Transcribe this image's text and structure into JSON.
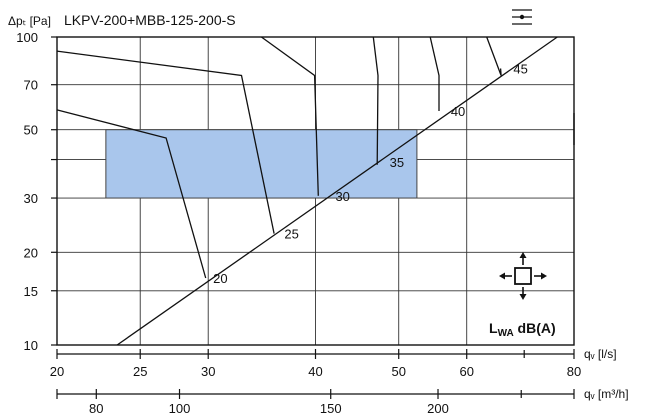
{
  "chart_data": {
    "type": "line",
    "title": "LKPV-200+MBB-125-200-S",
    "ylabel": "Δpₜ [Pa]",
    "xlabel": "qᵥ [l/s]",
    "x2label": "qᵥ [m³/h]",
    "x_scale": "log",
    "y_scale": "log",
    "xlim": [
      20,
      80
    ],
    "ylim": [
      10,
      100
    ],
    "x_ticks": [
      20,
      25,
      30,
      40,
      50,
      60,
      80
    ],
    "x_tick_labels": [
      "20",
      "25",
      "30",
      "40",
      "50",
      "60",
      "80"
    ],
    "x2_ticks": [
      80,
      100,
      150,
      200
    ],
    "x2_tick_labels": [
      "80",
      "100",
      "150",
      "200"
    ],
    "y_ticks": [
      10,
      15,
      20,
      30,
      50,
      70,
      100
    ],
    "y_tick_labels": [
      "10",
      "15",
      "20",
      "30",
      "50",
      "70",
      "100"
    ],
    "grid": true,
    "annotation": {
      "text_main": "L",
      "text_sub": "WA",
      "text_rest": " dB(A)"
    },
    "working_range": {
      "x": [
        22.8,
        52.5
      ],
      "y": [
        30,
        50
      ]
    },
    "system_curve": {
      "x": [
        23.5,
        76.5
      ],
      "y": [
        10,
        100
      ]
    },
    "series": [
      {
        "name": "20",
        "x": [
          20,
          26.8,
          29.8
        ],
        "y": [
          58,
          47,
          16.5
        ]
      },
      {
        "name": "25",
        "x": [
          20,
          32.8,
          35.8
        ],
        "y": [
          90,
          75,
          23
        ]
      },
      {
        "name": "30",
        "x": [
          34.6,
          39.9,
          40.3
        ],
        "y": [
          100,
          75,
          30.5
        ]
      },
      {
        "name": "35",
        "x": [
          46.7,
          47.3,
          47.2
        ],
        "y": [
          100,
          75,
          38.5
        ]
      },
      {
        "name": "40",
        "x": [
          54.4,
          55.7,
          55.7
        ],
        "y": [
          100,
          75,
          57.5
        ]
      },
      {
        "name": "45",
        "x": [
          63.3,
          65.8,
          65.7
        ],
        "y": [
          100,
          75,
          79
        ]
      }
    ],
    "series_label_points": [
      {
        "x": 30.4,
        "y": 16.5
      },
      {
        "x": 36.8,
        "y": 23
      },
      {
        "x": 42.2,
        "y": 30.5
      },
      {
        "x": 48.8,
        "y": 39.3
      },
      {
        "x": 57.5,
        "y": 57.5
      },
      {
        "x": 68,
        "y": 79
      }
    ]
  },
  "icons": {
    "menu": "menu-icon",
    "airflow": "airflow-icon"
  }
}
